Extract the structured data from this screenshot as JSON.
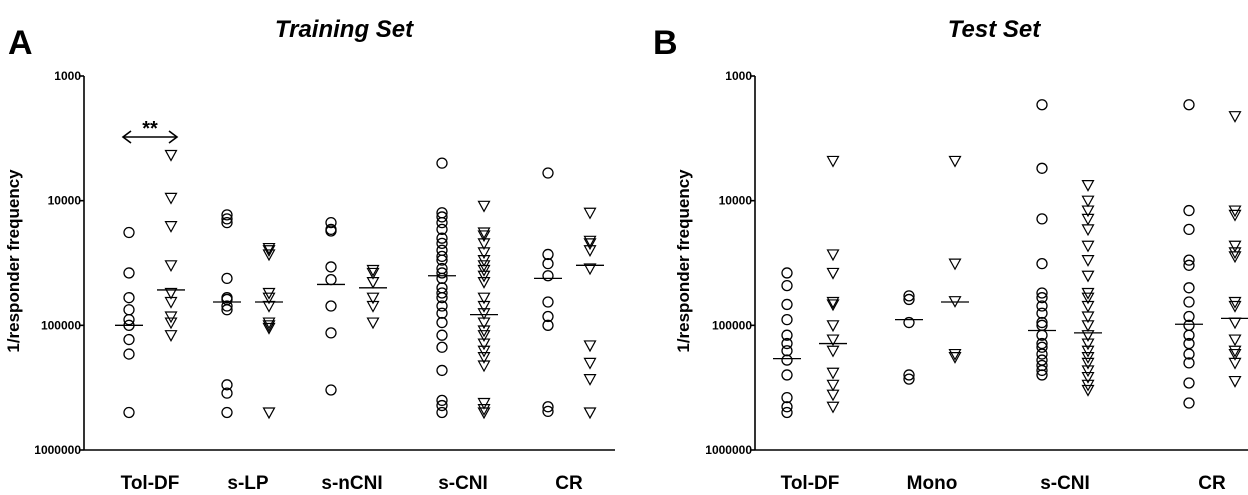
{
  "chart_data": [
    {
      "type": "scatter",
      "panel_label": "A",
      "title": "Training Set",
      "xlabel": "",
      "ylabel": "1/responder frequency",
      "y_scale": "log",
      "y_reversed": true,
      "ylim": [
        1000,
        1000000
      ],
      "y_tick_labels": [
        "1000",
        "10000",
        "100000",
        "1000000"
      ],
      "categories": [
        "Tol-DF",
        "s-LP",
        "s-nCNI",
        "s-CNI",
        "CR"
      ],
      "marker_legend": {
        "left_group": "circle",
        "right_group": "triangle-down"
      },
      "annotation": {
        "text": "**",
        "between": "Tol-DF circles and Tol-DF triangles"
      },
      "groups": [
        {
          "category": "Tol-DF",
          "circles": [
            18000,
            38000,
            60000,
            75000,
            90000,
            100000,
            130000,
            170000,
            500000
          ],
          "circles_median": 100000,
          "triangles": [
            4300,
            9500,
            16000,
            33000,
            55000,
            65000,
            85000,
            95000,
            120000
          ],
          "triangles_median": 52000
        },
        {
          "category": "s-LP",
          "circles": [
            13000,
            14000,
            15000,
            42000,
            60000,
            62000,
            70000,
            75000,
            300000,
            350000,
            500000
          ],
          "circles_median": 65000,
          "triangles": [
            24000,
            25000,
            27000,
            55000,
            60000,
            70000,
            95000,
            100000,
            105000,
            500000
          ],
          "triangles_median": 65000
        },
        {
          "category": "s-nCNI",
          "circles": [
            15000,
            17000,
            17500,
            34000,
            43000,
            70000,
            115000,
            330000
          ],
          "circles_median": 47000,
          "triangles": [
            36000,
            38000,
            45000,
            60000,
            70000,
            95000
          ],
          "triangles_median": 50000
        },
        {
          "category": "s-CNI",
          "circles": [
            5000,
            12500,
            13500,
            15000,
            17000,
            20000,
            22000,
            25000,
            28000,
            30000,
            35000,
            38000,
            42000,
            50000,
            55000,
            60000,
            70000,
            80000,
            95000,
            120000,
            150000,
            230000,
            400000,
            440000,
            500000
          ],
          "circles_median": 40000,
          "triangles": [
            11000,
            18000,
            19000,
            22000,
            26000,
            30000,
            33000,
            36000,
            40000,
            45000,
            60000,
            70000,
            80000,
            95000,
            110000,
            120000,
            140000,
            160000,
            180000,
            210000,
            420000,
            470000,
            500000
          ],
          "triangles_median": 82000
        },
        {
          "category": "CR",
          "circles": [
            6000,
            27000,
            32000,
            40000,
            65000,
            85000,
            100000,
            450000,
            490000
          ],
          "circles_median": 42000,
          "triangles": [
            12500,
            21000,
            22000,
            25000,
            35000,
            145000,
            200000,
            270000,
            500000
          ],
          "triangles_median": 33000
        }
      ]
    },
    {
      "type": "scatter",
      "panel_label": "B",
      "title": "Test Set",
      "xlabel": "",
      "ylabel": "1/responder frequency",
      "y_scale": "log",
      "y_reversed": true,
      "ylim": [
        1000,
        1000000
      ],
      "y_tick_labels": [
        "1000",
        "10000",
        "100000",
        "1000000"
      ],
      "categories": [
        "Tol-DF",
        "Mono",
        "s-CNI",
        "CR"
      ],
      "marker_legend": {
        "left_group": "circle",
        "right_group": "triangle-down"
      },
      "groups": [
        {
          "category": "Tol-DF",
          "circles": [
            38000,
            48000,
            68000,
            90000,
            120000,
            140000,
            160000,
            190000,
            250000,
            380000,
            450000,
            500000
          ],
          "circles_median": 185000,
          "triangles": [
            4800,
            27000,
            38000,
            65000,
            68000,
            100000,
            130000,
            160000,
            240000,
            300000,
            360000,
            450000
          ],
          "triangles_median": 140000
        },
        {
          "category": "Mono",
          "circles": [
            58000,
            62000,
            95000,
            250000,
            270000
          ],
          "circles_median": 90000,
          "triangles": [
            4800,
            32000,
            64000,
            170000,
            180000
          ],
          "triangles_median": 65000
        },
        {
          "category": "s-CNI",
          "circles": [
            1700,
            5500,
            14000,
            32000,
            55000,
            60000,
            70000,
            80000,
            95000,
            100000,
            120000,
            140000,
            150000,
            170000,
            190000,
            210000,
            230000,
            250000
          ],
          "circles_median": 110000,
          "triangles": [
            7500,
            10000,
            12000,
            14000,
            17000,
            23000,
            30000,
            40000,
            55000,
            60000,
            70000,
            85000,
            100000,
            120000,
            140000,
            160000,
            180000,
            200000,
            230000,
            260000,
            300000,
            330000
          ],
          "triangles_median": 115000
        },
        {
          "category": "CR",
          "circles": [
            1700,
            12000,
            17000,
            30000,
            33000,
            50000,
            65000,
            85000,
            100000,
            120000,
            140000,
            170000,
            200000,
            290000,
            420000
          ],
          "circles_median": 98000,
          "triangles": [
            2100,
            12000,
            13000,
            23000,
            26000,
            28000,
            65000,
            70000,
            95000,
            130000,
            160000,
            170000,
            200000,
            280000
          ],
          "triangles_median": 88000
        }
      ]
    }
  ]
}
